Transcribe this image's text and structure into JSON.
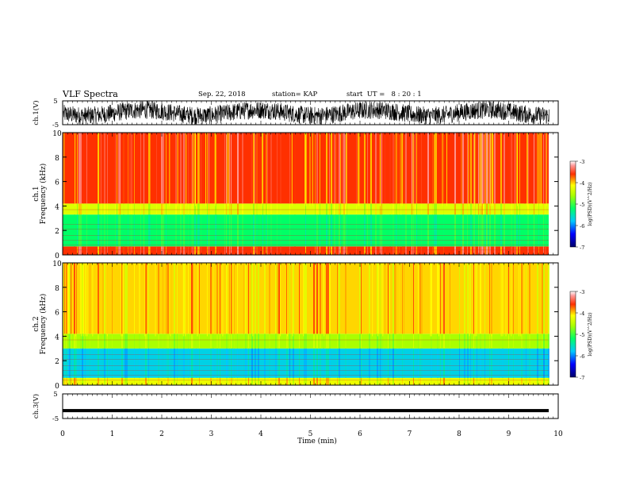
{
  "header": {
    "title": "VLF Spectra",
    "date": "Sep. 22, 2018",
    "station": "station= KAP",
    "start": "start  UT =   8 : 20 : 1"
  },
  "chart_data": {
    "type": "heatmap",
    "xlabel": "Time  (min)",
    "xlim": [
      0,
      10
    ],
    "x_ticks": [
      "0",
      "1",
      "2",
      "3",
      "4",
      "5",
      "6",
      "7",
      "8",
      "9",
      "10"
    ],
    "panels": [
      {
        "id": "ch1-waveform",
        "type": "line",
        "ylabel": "ch.1(V)",
        "ylim": [
          -5,
          5
        ],
        "y_ticks": [
          "5",
          "-5"
        ],
        "description_value": "noisy waveform oscillating between about -4 and +4 V"
      },
      {
        "id": "ch1-spectrogram",
        "type": "heatmap",
        "ylabel_line1": "ch.1",
        "ylabel_line2": "Frequency  (kHz)",
        "ylim": [
          0,
          10
        ],
        "y_ticks": [
          "0",
          "2",
          "4",
          "6",
          "8",
          "10"
        ],
        "bands": [
          {
            "from_khz": 0,
            "to_khz": 0.7,
            "level": -3.6
          },
          {
            "from_khz": 0.7,
            "to_khz": 3.3,
            "level": -5.2
          },
          {
            "from_khz": 3.3,
            "to_khz": 4.2,
            "level": -4.3
          },
          {
            "from_khz": 4.2,
            "to_khz": 10,
            "level": -3.6
          }
        ],
        "colorbar": {
          "label": "log(PSD)(V^2/Hz)",
          "ticks": [
            "-3",
            "-4",
            "-5",
            "-6",
            "-7"
          ],
          "range": [
            -7,
            -3
          ]
        }
      },
      {
        "id": "ch2-spectrogram",
        "type": "heatmap",
        "ylabel_line1": "ch.2",
        "ylabel_line2": "Frequency  (kHz)",
        "ylim": [
          0,
          10
        ],
        "y_ticks": [
          "0",
          "2",
          "4",
          "6",
          "8",
          "10"
        ],
        "bands": [
          {
            "from_khz": 0,
            "to_khz": 0.6,
            "level": -4.2
          },
          {
            "from_khz": 0.6,
            "to_khz": 3.0,
            "level": -5.7
          },
          {
            "from_khz": 3.0,
            "to_khz": 4.2,
            "level": -4.6
          },
          {
            "from_khz": 4.2,
            "to_khz": 10,
            "level": -4.0
          }
        ],
        "colorbar": {
          "label": "log(PSD)(V^2/Hz)",
          "ticks": [
            "-3",
            "-4",
            "-5",
            "-6",
            "-7"
          ],
          "range": [
            -7,
            -3
          ]
        }
      },
      {
        "id": "ch3-waveform",
        "type": "line",
        "ylabel": "ch.3(V)",
        "ylim": [
          -5,
          5
        ],
        "y_ticks": [
          "5",
          "-5"
        ],
        "constant_value_v": -1.8
      }
    ]
  }
}
